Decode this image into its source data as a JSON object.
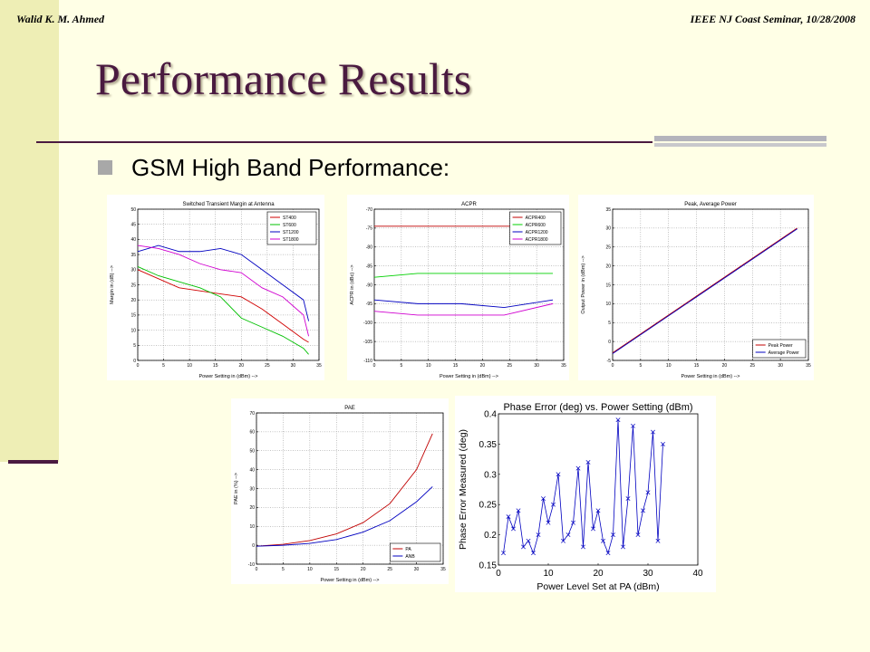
{
  "header": {
    "left": "Walid K. M. Ahmed",
    "right": "IEEE NJ Coast Seminar, 10/28/2008"
  },
  "title": "Performance Results",
  "bullet": "GSM High Band Performance:",
  "colors": {
    "title": "#4a1a40",
    "sidebar": "#eeeeb5",
    "background": "#ffffe6"
  },
  "chart_data": [
    {
      "id": "c1",
      "type": "line",
      "title": "Switched Transient Margin at Antenna",
      "xlabel": "Power Setting in (dBm) -->",
      "ylabel": "Margin in (dB) -->",
      "xlim": [
        0,
        35
      ],
      "ylim": [
        0,
        50
      ],
      "xticks": [
        0,
        5,
        10,
        15,
        20,
        25,
        30,
        35
      ],
      "yticks": [
        0,
        5,
        10,
        15,
        20,
        25,
        30,
        35,
        40,
        45,
        50
      ],
      "legend": "top-right",
      "grid": true,
      "series": [
        {
          "name": "ST400",
          "color": "#d00000",
          "x": [
            0,
            4,
            8,
            12,
            16,
            20,
            24,
            28,
            32,
            33
          ],
          "y": [
            30,
            27,
            24,
            23,
            22,
            21,
            17,
            12,
            7,
            6
          ]
        },
        {
          "name": "ST600",
          "color": "#00c000",
          "x": [
            0,
            4,
            8,
            12,
            16,
            20,
            24,
            28,
            32,
            33
          ],
          "y": [
            31,
            28,
            26,
            24,
            21,
            14,
            11,
            8,
            4,
            2
          ]
        },
        {
          "name": "ST1200",
          "color": "#0000c0",
          "x": [
            0,
            4,
            8,
            12,
            16,
            20,
            24,
            28,
            32,
            33
          ],
          "y": [
            36,
            38,
            36,
            36,
            37,
            35,
            30,
            25,
            20,
            13
          ]
        },
        {
          "name": "ST1800",
          "color": "#d000d0",
          "x": [
            0,
            4,
            8,
            12,
            16,
            20,
            24,
            28,
            32,
            33
          ],
          "y": [
            38,
            37,
            35,
            32,
            30,
            29,
            24,
            21,
            15,
            8
          ]
        }
      ]
    },
    {
      "id": "c2",
      "type": "line",
      "title": "ACPR",
      "xlabel": "Power Setting in (dBm) -->",
      "ylabel": "ACPR in (dBc) -->",
      "xlim": [
        0,
        35
      ],
      "ylim": [
        -110,
        -70
      ],
      "xticks": [
        0,
        5,
        10,
        15,
        20,
        25,
        30,
        35
      ],
      "yticks": [
        -110,
        -105,
        -100,
        -95,
        -90,
        -85,
        -80,
        -75,
        -70
      ],
      "legend": "top-right",
      "grid": true,
      "series": [
        {
          "name": "ACPR400",
          "color": "#c00000",
          "x": [
            0,
            8,
            16,
            24,
            33
          ],
          "y": [
            -74.5,
            -74.5,
            -74.5,
            -74.5,
            -74.5
          ]
        },
        {
          "name": "ACPR600",
          "color": "#00d000",
          "x": [
            0,
            8,
            16,
            24,
            33
          ],
          "y": [
            -88,
            -87,
            -87,
            -87,
            -87
          ]
        },
        {
          "name": "ACPR1200",
          "color": "#0000c0",
          "x": [
            0,
            8,
            16,
            24,
            33
          ],
          "y": [
            -94,
            -95,
            -95,
            -96,
            -94
          ]
        },
        {
          "name": "ACPR1800",
          "color": "#d000d0",
          "x": [
            0,
            8,
            16,
            24,
            33
          ],
          "y": [
            -97,
            -98,
            -98,
            -98,
            -95
          ]
        }
      ]
    },
    {
      "id": "c3",
      "type": "line",
      "title": "Peak, Average Power",
      "xlabel": "Power Setting in (dBm) -->",
      "ylabel": "Output Power in (dBm) -->",
      "xlim": [
        0,
        35
      ],
      "ylim": [
        -5,
        35
      ],
      "xticks": [
        0,
        5,
        10,
        15,
        20,
        25,
        30,
        35
      ],
      "yticks": [
        -5,
        0,
        5,
        10,
        15,
        20,
        25,
        30,
        35
      ],
      "legend": "bottom-right",
      "grid": true,
      "series": [
        {
          "name": "Peak Power",
          "color": "#c00000",
          "x": [
            0,
            33
          ],
          "y": [
            -3,
            30
          ]
        },
        {
          "name": "Average Power",
          "color": "#0000c0",
          "x": [
            0,
            33
          ],
          "y": [
            -3.2,
            29.8
          ]
        }
      ]
    },
    {
      "id": "c4",
      "type": "line",
      "title": "PAE",
      "xlabel": "Power Setting in (dBm) -->",
      "ylabel": "PAE in (%) -->",
      "xlim": [
        0,
        35
      ],
      "ylim": [
        -10,
        70
      ],
      "xticks": [
        0,
        5,
        10,
        15,
        20,
        25,
        30,
        35
      ],
      "yticks": [
        -10,
        0,
        10,
        20,
        30,
        40,
        50,
        60,
        70
      ],
      "legend": "bottom-right",
      "grid": true,
      "series": [
        {
          "name": "PA",
          "color": "#c00000",
          "x": [
            0,
            5,
            10,
            15,
            20,
            25,
            30,
            33
          ],
          "y": [
            -0.5,
            0.5,
            2.5,
            6,
            12,
            22,
            40,
            59
          ]
        },
        {
          "name": "ANB",
          "color": "#0000c0",
          "x": [
            0,
            5,
            10,
            15,
            20,
            25,
            30,
            33
          ],
          "y": [
            -0.5,
            0,
            1,
            3,
            7,
            13,
            23,
            31
          ]
        }
      ]
    },
    {
      "id": "c5",
      "type": "line",
      "title": "Phase Error (deg) vs. Power Setting (dBm)",
      "xlabel": "Power Level Set at PA (dBm)",
      "ylabel": "Phase Error Measured (deg)",
      "xlim": [
        0,
        40
      ],
      "ylim": [
        0.15,
        0.4
      ],
      "xticks": [
        0,
        10,
        20,
        30,
        40
      ],
      "yticks": [
        0.15,
        0.2,
        0.25,
        0.3,
        0.35,
        0.4
      ],
      "ytick_labels": [
        "0.15",
        "0.2",
        "0.25",
        "0.3",
        "0.35",
        "0.4"
      ],
      "legend": "none",
      "grid": false,
      "marker": "x",
      "series": [
        {
          "color": "#0000c0",
          "x": [
            1,
            2,
            3,
            4,
            5,
            6,
            7,
            8,
            9,
            10,
            11,
            12,
            13,
            14,
            15,
            16,
            17,
            18,
            19,
            20,
            21,
            22,
            23,
            24,
            25,
            26,
            27,
            28,
            29,
            30,
            31,
            32,
            33
          ],
          "y": [
            0.17,
            0.23,
            0.21,
            0.24,
            0.18,
            0.19,
            0.17,
            0.2,
            0.26,
            0.22,
            0.25,
            0.3,
            0.19,
            0.2,
            0.22,
            0.31,
            0.18,
            0.32,
            0.21,
            0.24,
            0.19,
            0.17,
            0.2,
            0.39,
            0.18,
            0.26,
            0.38,
            0.2,
            0.24,
            0.27,
            0.37,
            0.19,
            0.35
          ]
        }
      ]
    }
  ]
}
